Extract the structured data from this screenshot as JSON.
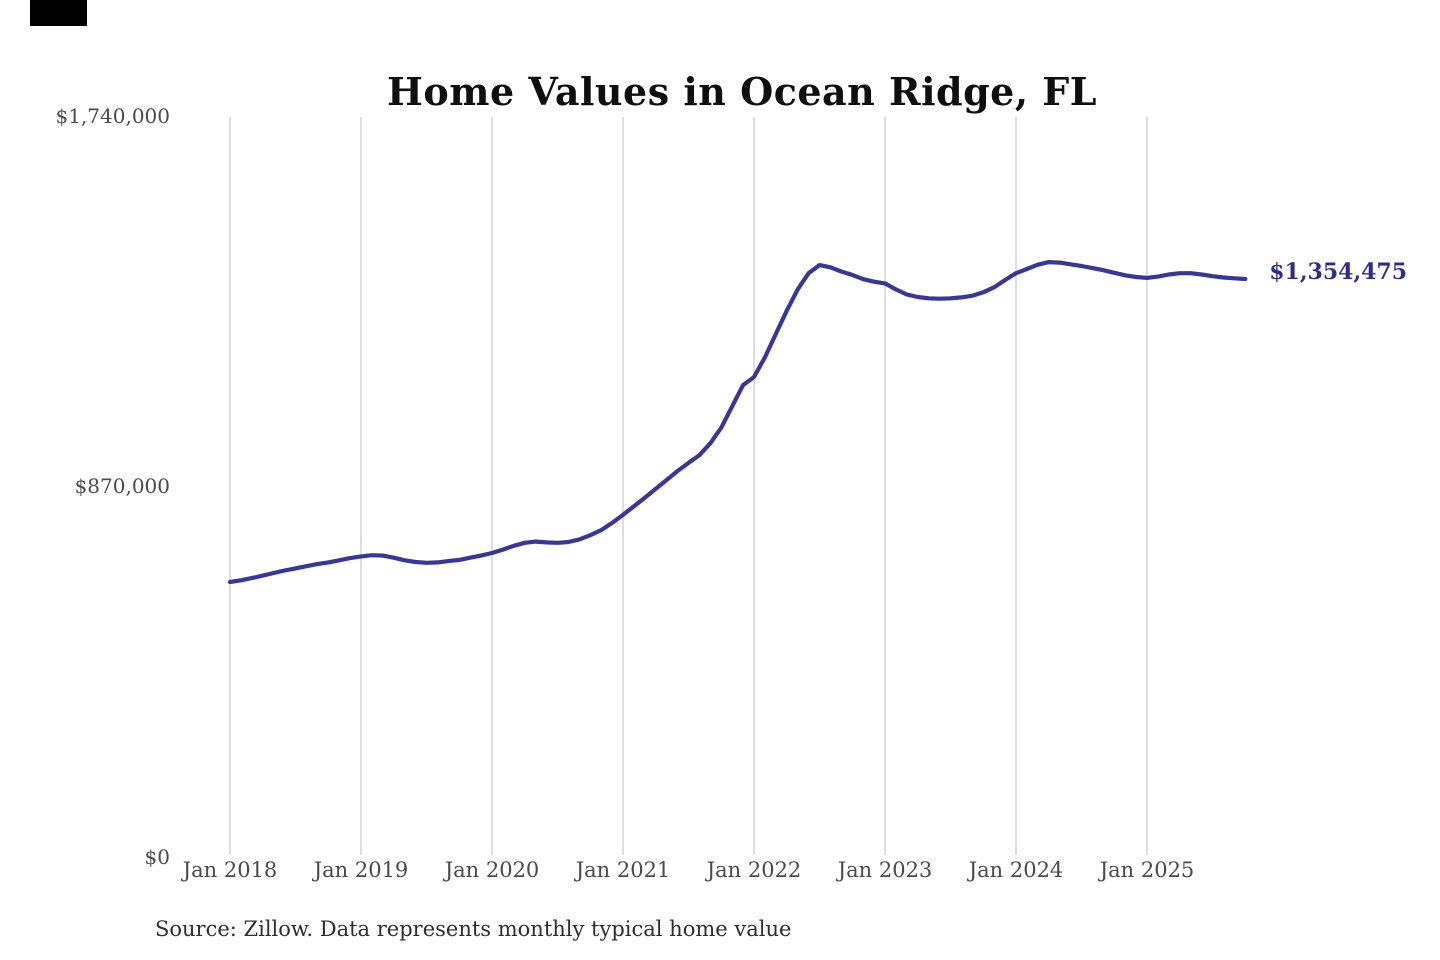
{
  "title": "Home Values in Ocean Ridge, FL",
  "source_note": "Source: Zillow. Data represents monthly typical home value",
  "colors": {
    "line": "#37379b",
    "end_label": "#2d2d8e",
    "grid": "#cccccc",
    "axis_text": "#4a4a4a",
    "title_text": "#0f0f0f",
    "background": "#ffffff"
  },
  "chart_data": {
    "type": "line",
    "title": "Home Values in Ocean Ridge, FL",
    "xlabel": "",
    "ylabel": "",
    "ylim": [
      0,
      1740000
    ],
    "y_tick_labels": [
      "$0",
      "$870,000",
      "$1,740,000"
    ],
    "y_tick_values": [
      0,
      870000,
      1740000
    ],
    "x_tick_labels": [
      "Jan 2018",
      "Jan 2019",
      "Jan 2020",
      "Jan 2021",
      "Jan 2022",
      "Jan 2023",
      "Jan 2024",
      "Jan 2025"
    ],
    "x_tick_month_indices": [
      0,
      12,
      24,
      36,
      48,
      60,
      72,
      84
    ],
    "grid": "vertical-only",
    "legend": "none",
    "last_value_label": "$1,354,475",
    "x_months": [
      "2018-01",
      "2018-02",
      "2018-03",
      "2018-04",
      "2018-05",
      "2018-06",
      "2018-07",
      "2018-08",
      "2018-09",
      "2018-10",
      "2018-11",
      "2018-12",
      "2019-01",
      "2019-02",
      "2019-03",
      "2019-04",
      "2019-05",
      "2019-06",
      "2019-07",
      "2019-08",
      "2019-09",
      "2019-10",
      "2019-11",
      "2019-12",
      "2020-01",
      "2020-02",
      "2020-03",
      "2020-04",
      "2020-05",
      "2020-06",
      "2020-07",
      "2020-08",
      "2020-09",
      "2020-10",
      "2020-11",
      "2020-12",
      "2021-01",
      "2021-02",
      "2021-03",
      "2021-04",
      "2021-05",
      "2021-06",
      "2021-07",
      "2021-08",
      "2021-09",
      "2021-10",
      "2021-11",
      "2021-12",
      "2022-01",
      "2022-02",
      "2022-03",
      "2022-04",
      "2022-05",
      "2022-06",
      "2022-07",
      "2022-08",
      "2022-09",
      "2022-10",
      "2022-11",
      "2022-12",
      "2023-01",
      "2023-02",
      "2023-03",
      "2023-04",
      "2023-05",
      "2023-06",
      "2023-07",
      "2023-08",
      "2023-09",
      "2023-10",
      "2023-11",
      "2023-12",
      "2024-01",
      "2024-02",
      "2024-03",
      "2024-04",
      "2024-05",
      "2024-06",
      "2024-07",
      "2024-08",
      "2024-09",
      "2024-10",
      "2024-11",
      "2024-12",
      "2025-01",
      "2025-02",
      "2025-03",
      "2025-04",
      "2025-05",
      "2025-06",
      "2025-07",
      "2025-08",
      "2025-09",
      "2025-10"
    ],
    "values": [
      642000,
      646000,
      651000,
      657000,
      663000,
      669000,
      674000,
      679000,
      684000,
      688000,
      693000,
      698000,
      702000,
      705000,
      704000,
      699000,
      693000,
      689000,
      687000,
      688000,
      691000,
      694000,
      699000,
      704000,
      710000,
      718000,
      727000,
      734000,
      737000,
      735000,
      734000,
      736000,
      742000,
      752000,
      764000,
      781000,
      800000,
      820000,
      840000,
      861000,
      882000,
      903000,
      922000,
      940000,
      968000,
      1005000,
      1055000,
      1105000,
      1124000,
      1170000,
      1225000,
      1280000,
      1330000,
      1368000,
      1387000,
      1382000,
      1372000,
      1364000,
      1354000,
      1348000,
      1344000,
      1330000,
      1318000,
      1312000,
      1309000,
      1308000,
      1309000,
      1311000,
      1315000,
      1323000,
      1335000,
      1352000,
      1368000,
      1378000,
      1388000,
      1394000,
      1393000,
      1389000,
      1385000,
      1380000,
      1375000,
      1369000,
      1363000,
      1359000,
      1357000,
      1360000,
      1365000,
      1368000,
      1368000,
      1365000,
      1361000,
      1358000,
      1356000,
      1354475
    ]
  }
}
